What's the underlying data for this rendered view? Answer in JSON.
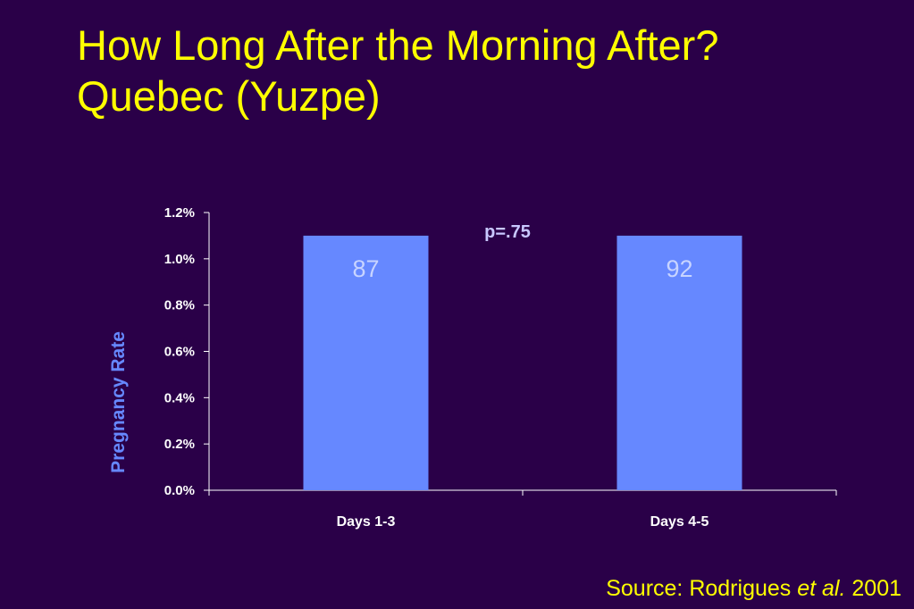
{
  "slide": {
    "title_line1": "How Long After the Morning After?",
    "title_line2": "Quebec (Yuzpe)",
    "source_prefix": "Source: Rodrigues ",
    "source_italic": "et al.",
    "source_suffix": " 2001"
  },
  "colors": {
    "background": "#2a0048",
    "title": "#ffff00",
    "bar": "#6688ff",
    "bar_label": "#c8d4ff",
    "axis_text": "#ffffff",
    "annotation": "#c8c8ff"
  },
  "chart_data": {
    "type": "bar",
    "categories": [
      "Days 1-3",
      "Days 4-5"
    ],
    "values": [
      1.1,
      1.1
    ],
    "value_unit": "%",
    "bar_labels": [
      "87",
      "92"
    ],
    "annotation": "p=.75",
    "title": "",
    "xlabel": "",
    "ylabel": "Pregnancy Rate",
    "ylim": [
      0,
      1.2
    ],
    "yticks": [
      0,
      0.2,
      0.4,
      0.6,
      0.8,
      1.0,
      1.2
    ],
    "ytick_labels": [
      "0.0%",
      "0.2%",
      "0.4%",
      "0.6%",
      "0.8%",
      "1.0%",
      "1.2%"
    ],
    "grid": false,
    "legend": "none"
  }
}
